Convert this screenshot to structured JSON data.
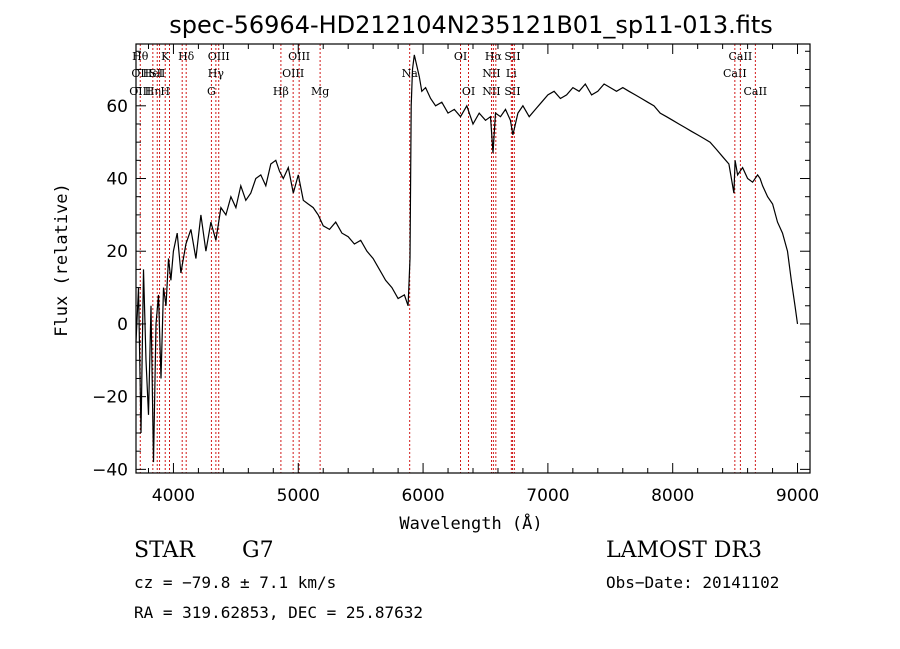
{
  "chart_data": {
    "type": "line",
    "title": "spec-56964-HD212104N235121B01_sp11-013.fits",
    "xlabel": "Wavelength (Å)",
    "ylabel": "Flux (relative)",
    "xlim": [
      3700,
      9100
    ],
    "ylim": [
      -41,
      77
    ],
    "xticks": [
      4000,
      5000,
      6000,
      7000,
      8000,
      9000
    ],
    "yticks": [
      -40,
      -20,
      0,
      20,
      40,
      60
    ],
    "series": [
      {
        "name": "flux",
        "x": [
          3700,
          3720,
          3740,
          3760,
          3780,
          3800,
          3820,
          3840,
          3860,
          3880,
          3900,
          3920,
          3940,
          3960,
          3980,
          4000,
          4030,
          4060,
          4100,
          4140,
          4180,
          4220,
          4260,
          4300,
          4340,
          4380,
          4420,
          4460,
          4500,
          4540,
          4580,
          4620,
          4660,
          4700,
          4740,
          4780,
          4820,
          4850,
          4880,
          4920,
          4960,
          5000,
          5040,
          5080,
          5120,
          5160,
          5200,
          5250,
          5300,
          5350,
          5400,
          5450,
          5500,
          5550,
          5600,
          5650,
          5700,
          5750,
          5800,
          5850,
          5880,
          5895,
          5905,
          5915,
          5930,
          5950,
          5970,
          5990,
          6020,
          6060,
          6100,
          6150,
          6200,
          6250,
          6300,
          6350,
          6400,
          6450,
          6500,
          6540,
          6560,
          6580,
          6620,
          6660,
          6700,
          6720,
          6760,
          6800,
          6850,
          6900,
          6950,
          7000,
          7050,
          7100,
          7150,
          7200,
          7250,
          7300,
          7350,
          7400,
          7450,
          7500,
          7550,
          7600,
          7650,
          7700,
          7750,
          7800,
          7850,
          7900,
          7950,
          8000,
          8050,
          8100,
          8150,
          8200,
          8250,
          8300,
          8350,
          8400,
          8450,
          8490,
          8500,
          8520,
          8540,
          8560,
          8600,
          8640,
          8680,
          8700,
          8720,
          8760,
          8800,
          8840,
          8880,
          8920,
          8950,
          8980,
          9000
        ],
        "y": [
          -5,
          10,
          -30,
          15,
          -10,
          -25,
          5,
          -38,
          0,
          8,
          -15,
          10,
          5,
          18,
          12,
          20,
          25,
          14,
          22,
          26,
          18,
          30,
          20,
          28,
          23,
          32,
          30,
          35,
          32,
          38,
          34,
          36,
          40,
          41,
          38,
          44,
          45,
          42,
          40,
          43,
          36,
          41,
          34,
          33,
          32,
          30,
          27,
          26,
          28,
          25,
          24,
          22,
          23,
          20,
          18,
          15,
          12,
          10,
          7,
          8,
          5,
          18,
          60,
          70,
          74,
          71,
          68,
          64,
          65,
          62,
          60,
          61,
          58,
          59,
          57,
          60,
          55,
          58,
          56,
          57,
          47,
          58,
          57,
          59,
          56,
          52,
          58,
          60,
          57,
          59,
          61,
          63,
          64,
          62,
          63,
          65,
          64,
          66,
          63,
          64,
          66,
          65,
          64,
          65,
          64,
          63,
          62,
          61,
          60,
          58,
          57,
          56,
          55,
          54,
          53,
          52,
          51,
          50,
          48,
          46,
          44,
          36,
          45,
          41,
          42,
          43,
          40,
          39,
          41,
          40,
          38,
          35,
          33,
          28,
          25,
          20,
          12,
          5,
          0
        ]
      }
    ],
    "lines": [
      {
        "w": 3734,
        "labels": [
          "Hθ",
          "OII",
          "OIII"
        ]
      },
      {
        "w": 3835,
        "labels": [
          "",
          "HeI",
          "Hη"
        ]
      },
      {
        "w": 3870,
        "labels": [
          "",
          "SII",
          ""
        ]
      },
      {
        "w": 3889,
        "labels": [
          "",
          "",
          ""
        ]
      },
      {
        "w": 3934,
        "labels": [
          "K",
          "",
          "H"
        ]
      },
      {
        "w": 3968,
        "labels": [
          "",
          "",
          ""
        ]
      },
      {
        "w": 4070,
        "labels": [
          "",
          "",
          ""
        ]
      },
      {
        "w": 4102,
        "labels": [
          "Hδ",
          "",
          ""
        ]
      },
      {
        "w": 4304,
        "labels": [
          "",
          "",
          "G"
        ]
      },
      {
        "w": 4340,
        "labels": [
          "",
          "Hγ",
          ""
        ]
      },
      {
        "w": 4363,
        "labels": [
          "OIII",
          "",
          ""
        ]
      },
      {
        "w": 4861,
        "labels": [
          "",
          "",
          "Hβ"
        ]
      },
      {
        "w": 4959,
        "labels": [
          "",
          "OIII",
          ""
        ]
      },
      {
        "w": 5007,
        "labels": [
          "OIII",
          "",
          ""
        ]
      },
      {
        "w": 5175,
        "labels": [
          "",
          "",
          "Mg"
        ]
      },
      {
        "w": 5893,
        "labels": [
          "",
          "Na",
          ""
        ]
      },
      {
        "w": 6300,
        "labels": [
          "OI",
          "",
          ""
        ]
      },
      {
        "w": 6364,
        "labels": [
          "",
          "",
          "OI"
        ]
      },
      {
        "w": 6548,
        "labels": [
          "",
          "NII",
          "NII"
        ]
      },
      {
        "w": 6563,
        "labels": [
          "Hα",
          "",
          ""
        ]
      },
      {
        "w": 6583,
        "labels": [
          "",
          "",
          ""
        ]
      },
      {
        "w": 6707,
        "labels": [
          "",
          "Li",
          ""
        ]
      },
      {
        "w": 6716,
        "labels": [
          "SII",
          "",
          "SII"
        ]
      },
      {
        "w": 6731,
        "labels": [
          "",
          "",
          ""
        ]
      },
      {
        "w": 8498,
        "labels": [
          "",
          "CaII",
          ""
        ]
      },
      {
        "w": 8542,
        "labels": [
          "CaII",
          "",
          ""
        ]
      },
      {
        "w": 8662,
        "labels": [
          "",
          "",
          "CaII"
        ]
      }
    ]
  },
  "info": {
    "class": "STAR",
    "subclass": "G7",
    "survey": "LAMOST DR3",
    "cz": "cz = −79.8 ± 7.1 km/s",
    "obs_date": "Obs−Date: 20141102",
    "radec": "RA = 319.62853, DEC =  25.87632"
  },
  "colors": {
    "axis": "#000000",
    "spectrum": "#000000",
    "lines": "#cc0000"
  }
}
